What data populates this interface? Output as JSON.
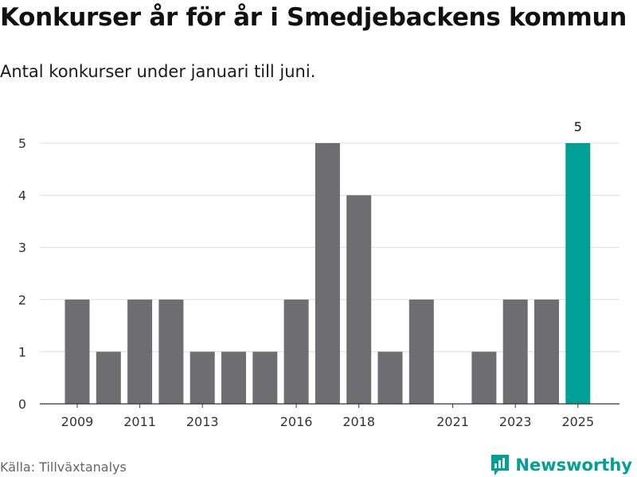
{
  "title": "Konkurser år för år i Smedjebackens kommun",
  "subtitle": "Antal konkurser under januari till juni.",
  "source": "Källa: Tillväxtanalys",
  "brand": "Newsworthy",
  "colors": {
    "bar": "#6e6d72",
    "highlight": "#00a096",
    "grid": "#dedede",
    "axis": "#333333",
    "text": "#333333"
  },
  "chart_data": {
    "type": "bar",
    "categories": [
      "2009",
      "2010",
      "2011",
      "2012",
      "2013",
      "2014",
      "2015",
      "2016",
      "2017",
      "2018",
      "2019",
      "2020",
      "2021",
      "2022",
      "2023",
      "2024",
      "2025"
    ],
    "values": [
      2,
      1,
      2,
      2,
      1,
      1,
      1,
      2,
      5,
      4,
      1,
      2,
      0,
      1,
      2,
      2,
      5
    ],
    "x_tick_labels": [
      "2009",
      "2011",
      "2013",
      "2016",
      "2018",
      "2021",
      "2023",
      "2025"
    ],
    "y_ticks": [
      0,
      1,
      2,
      3,
      4,
      5
    ],
    "ylim": [
      0,
      5
    ],
    "highlight_category": "2025",
    "highlight_value_label": "5",
    "grid": true
  }
}
